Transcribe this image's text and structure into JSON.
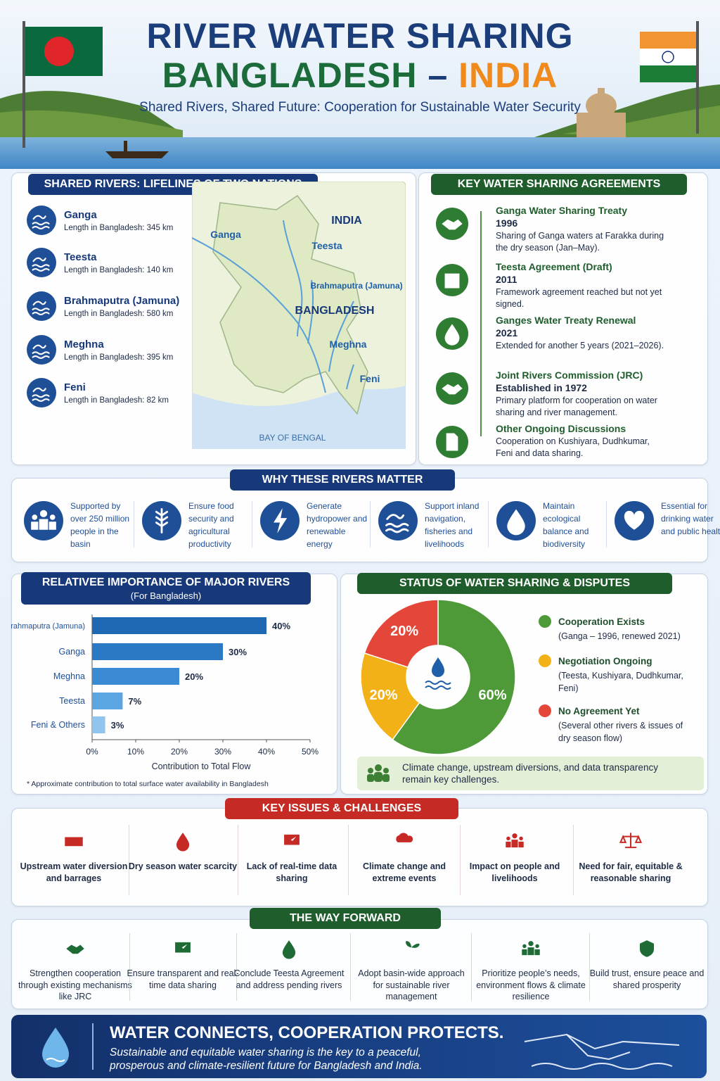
{
  "header": {
    "title": "RIVER WATER SHARING",
    "country_a": "BANGLADESH",
    "dash": "–",
    "country_b": "INDIA",
    "subtitle": "Shared Rivers, Shared Future: Cooperation for Sustainable Water Security"
  },
  "rivers": {
    "title": "SHARED RIVERS: LIFELINES OF TWO NATIONS",
    "items": [
      {
        "name": "Ganga",
        "length": "Length in Bangladesh: 345 km"
      },
      {
        "name": "Teesta",
        "length": "Length in Bangladesh: 140 km"
      },
      {
        "name": "Brahmaputra (Jamuna)",
        "length": "Length in Bangladesh: 580 km"
      },
      {
        "name": "Meghna",
        "length": "Length in Bangladesh: 395 km"
      },
      {
        "name": "Feni",
        "length": "Length in Bangladesh: 82 km"
      }
    ],
    "map_labels": {
      "india": "INDIA",
      "ganga": "Ganga",
      "teesta": "Teesta",
      "brahmaputra": "Brahmaputra (Jamuna)",
      "bangladesh": "BANGLADESH",
      "meghna": "Meghna",
      "feni": "Feni",
      "bay": "BAY OF BENGAL"
    }
  },
  "agreements": {
    "title": "KEY WATER SHARING AGREEMENTS",
    "items": [
      {
        "title": "Ganga Water Sharing Treaty",
        "year": "1996",
        "desc": "Sharing of Ganga waters at Farakka during the dry season (Jan–May)."
      },
      {
        "title": "Teesta Agreement (Draft)",
        "year": "2011",
        "desc": "Framework agreement reached but not yet signed."
      },
      {
        "title": "Ganges Water Treaty Renewal",
        "year": "2021",
        "desc": "Extended for another 5 years (2021–2026)."
      },
      {
        "title": "Joint Rivers Commission (JRC)",
        "year": "Established in 1972",
        "desc": "Primary platform for cooperation on water sharing and river management."
      },
      {
        "title": "Other Ongoing Discussions",
        "desc": "Cooperation on Kushiyara, Dudhkumar, Feni and data sharing."
      }
    ]
  },
  "why": {
    "title": "WHY THESE RIVERS MATTER",
    "items": [
      "Supported by over 250 million people in the basin",
      "Ensure food security and agricultural productivity",
      "Generate hydropower and renewable energy",
      "Support inland navigation, fisheries and livelihoods",
      "Maintain ecological balance and biodiversity",
      "Essential for drinking water and public health"
    ]
  },
  "chart_data": [
    {
      "type": "bar",
      "orientation": "horizontal",
      "title": "RELATIVEE IMPORTANCE OF MAJOR RIVERS",
      "subtitle": "(For Bangladesh)",
      "categories": [
        "Brahmaputra (Jamuna)",
        "Ganga",
        "Meghna",
        "Teesta",
        "Feni & Others"
      ],
      "values": [
        40,
        30,
        20,
        7,
        3
      ],
      "value_labels": [
        "40%",
        "30%",
        "20%",
        "7%",
        "3%"
      ],
      "colors": [
        "#1f68b3",
        "#2b78c4",
        "#3a8bd4",
        "#5ba6e2",
        "#8fc5ee"
      ],
      "xlim": [
        0,
        50
      ],
      "xticks": [
        {
          "value": 0,
          "label": "0%"
        },
        {
          "value": 10,
          "label": "10%"
        },
        {
          "value": 20,
          "label": "20%"
        },
        {
          "value": 30,
          "label": "30%"
        },
        {
          "value": 40,
          "label": "40%"
        },
        {
          "value": 50,
          "label": "50%"
        }
      ],
      "xlabel": "Contribution to Total Flow",
      "footnote": "* Approximate contribution to total surface water availability in Bangladesh"
    },
    {
      "type": "pie",
      "donut": true,
      "title": "STATUS OF WATER SHARING & DISPUTES",
      "categories": [
        "Cooperation Exists",
        "Negotiation Ongoing",
        "No Agreement Yet"
      ],
      "notes": [
        "(Ganga – 1996, renewed 2021)",
        "(Teesta, Kushiyara, Dudhkumar, Feni)",
        "(Several other rivers & issues of dry season flow)"
      ],
      "values": [
        60,
        20,
        20
      ],
      "value_labels": [
        "60%",
        "20%",
        "20%"
      ],
      "colors": [
        "#4e9a38",
        "#f2b116",
        "#e4473a"
      ],
      "note": "Climate change, upstream diversions, and data transparency remain key challenges."
    }
  ],
  "challenges": {
    "title": "KEY ISSUES & CHALLENGES",
    "items": [
      "Upstream water diversion and barrages",
      "Dry season water scarcity",
      "Lack of real-time data sharing",
      "Climate change and extreme events",
      "Impact on people and livelihoods",
      "Need for fair, equitable & reasonable sharing"
    ]
  },
  "forward": {
    "title": "THE WAY FORWARD",
    "items": [
      "Strengthen cooperation through existing mechanisms like JRC",
      "Ensure transparent and real-time data sharing",
      "Conclude Teesta Agreement and address pending rivers",
      "Adopt basin-wide approach for sustainable river management",
      "Prioritize people’s needs, environment flows & climate resilience",
      "Build trust, ensure peace and shared prosperity"
    ]
  },
  "footer": {
    "title": "WATER CONNECTS, COOPERATION PROTECTS.",
    "text": "Sustainable and equitable water sharing is the key to a peaceful, prosperous and climate-resilient future for Bangladesh and India."
  }
}
